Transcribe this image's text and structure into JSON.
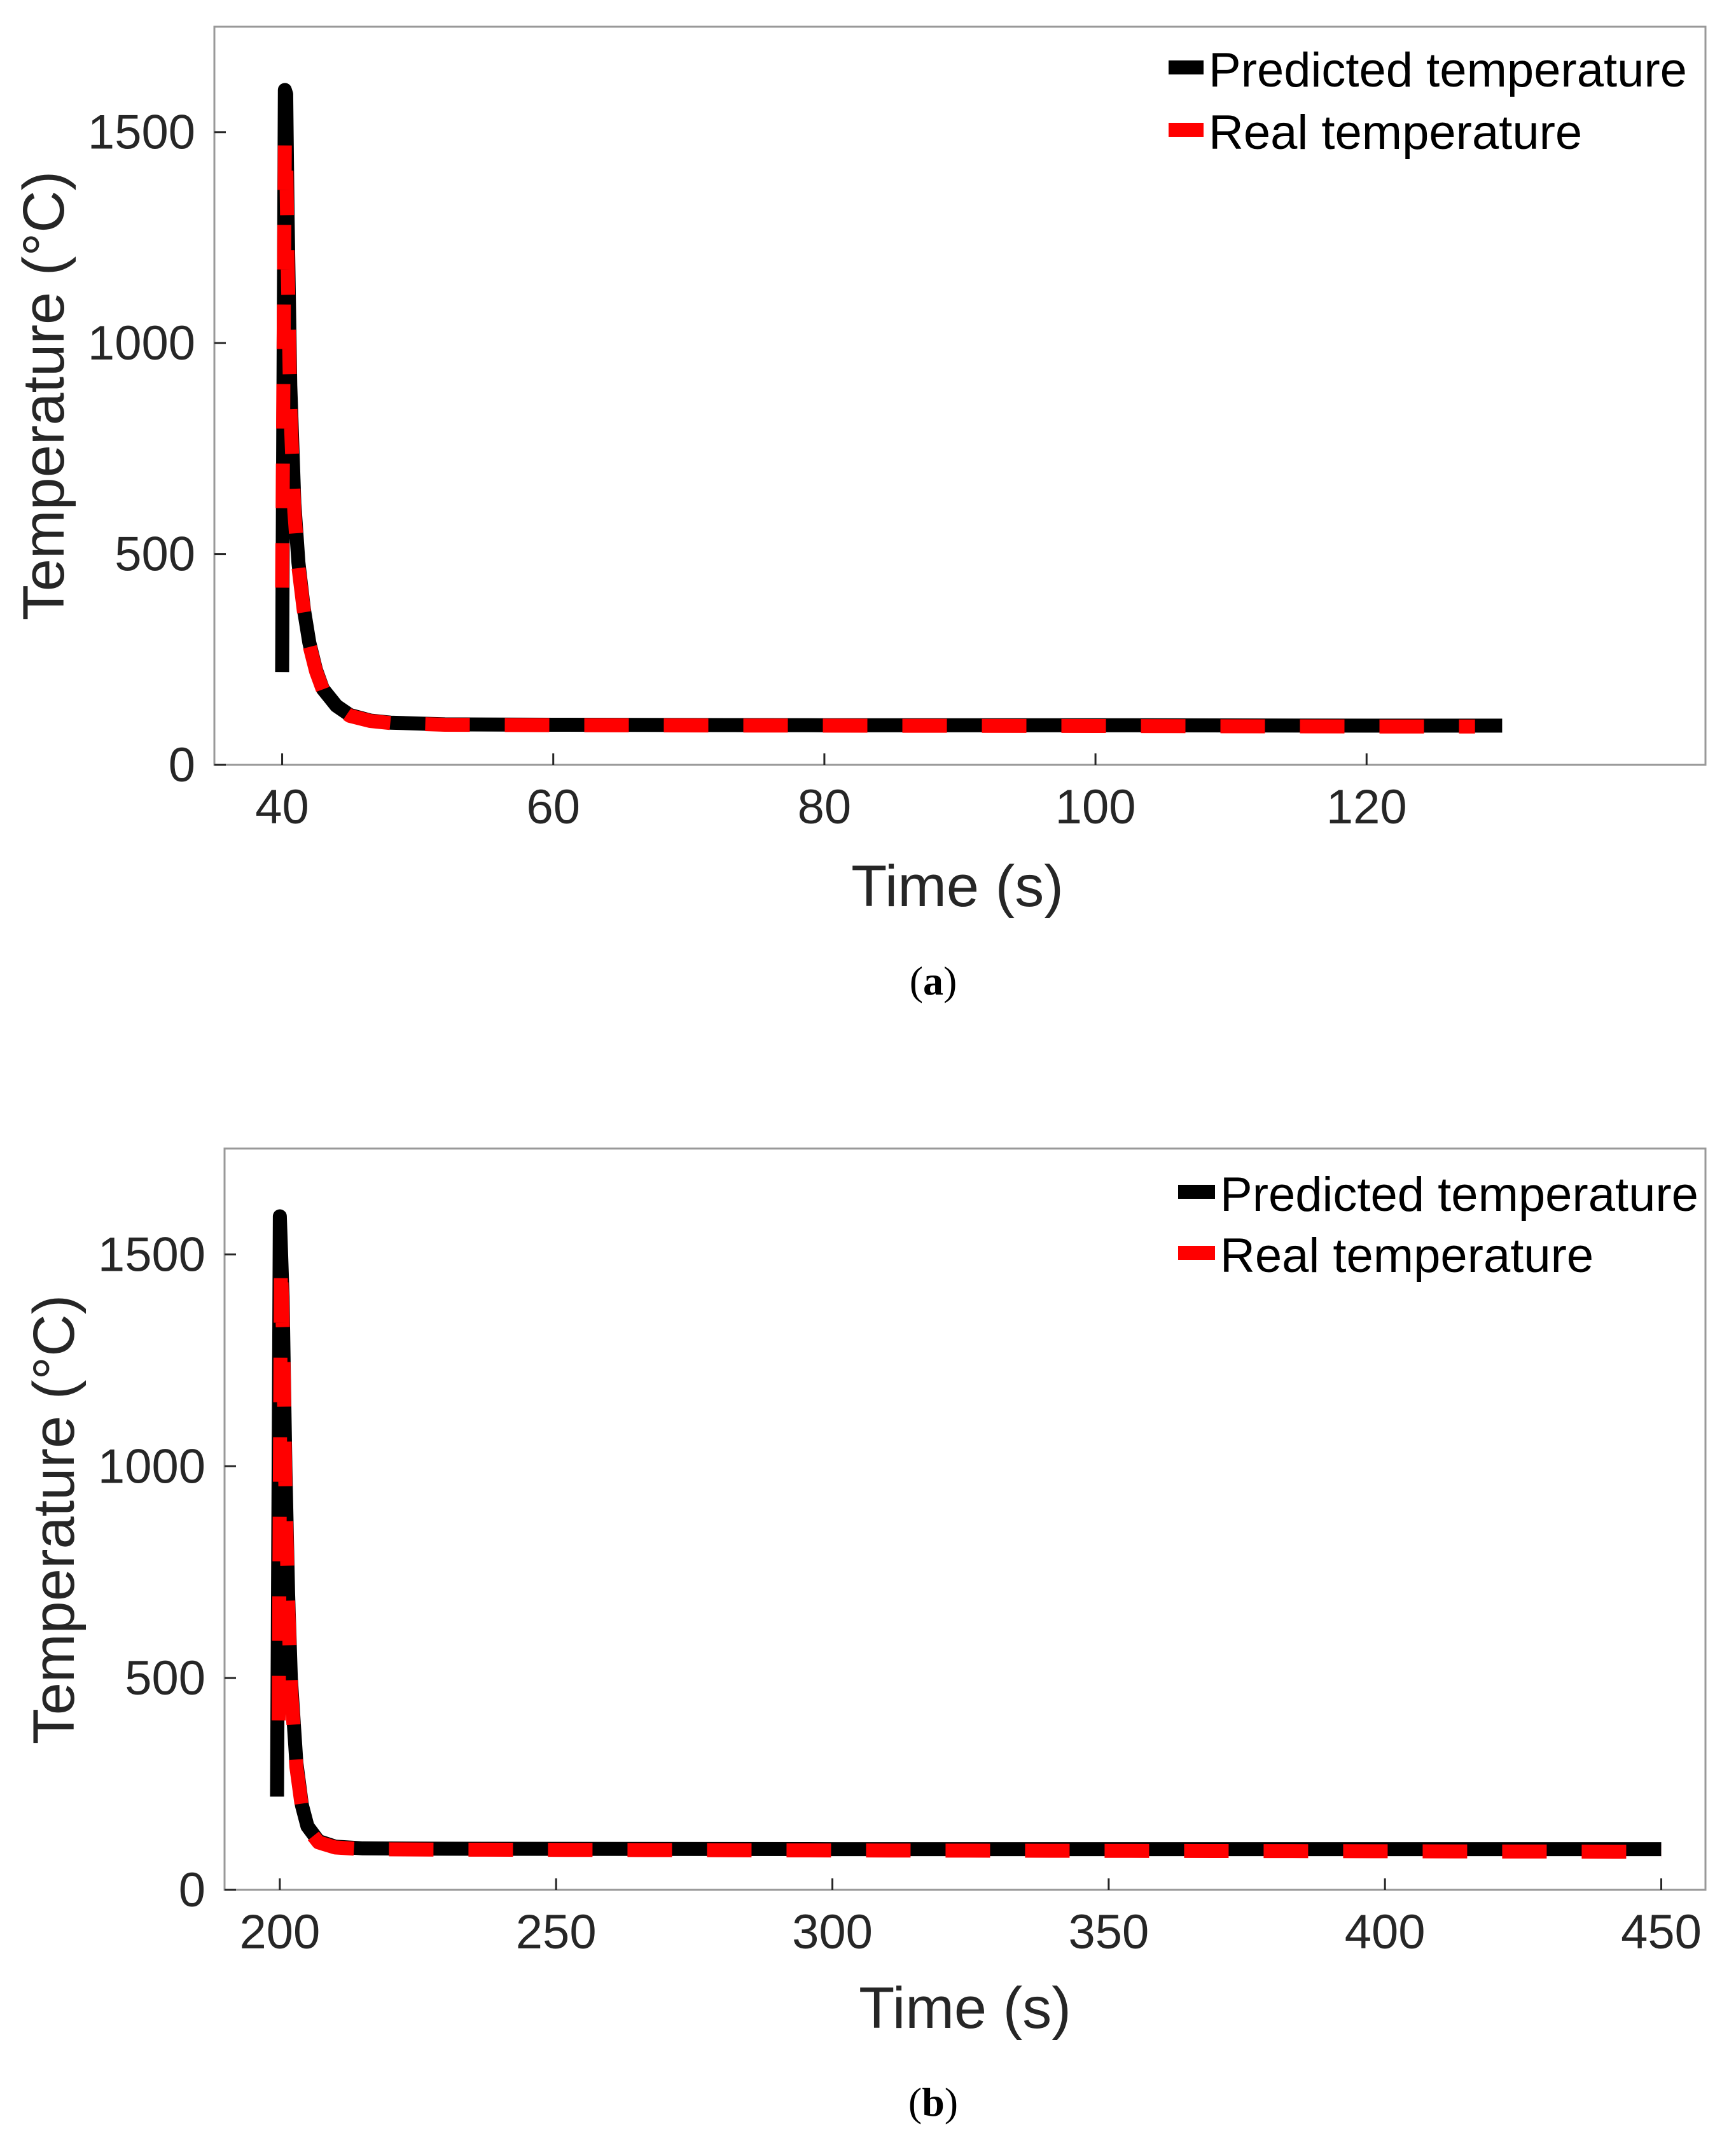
{
  "chart_data": [
    {
      "id": "a",
      "type": "line",
      "caption_label": "a",
      "xlabel": "Time (s)",
      "ylabel": "Temperature (°C)",
      "xlim": [
        35,
        145
      ],
      "ylim": [
        0,
        1750
      ],
      "xticks": [
        40,
        60,
        80,
        100,
        120
      ],
      "yticks": [
        0,
        500,
        1000,
        1500
      ],
      "legend_position": "top-right",
      "series": [
        {
          "name": "Predicted temperature",
          "color": "#000000",
          "style": "solid",
          "x": [
            40.0,
            40.2,
            40.3,
            40.4,
            40.6,
            40.9,
            41.2,
            41.6,
            42.0,
            42.5,
            43.0,
            44.0,
            45.0,
            46.5,
            48.0,
            52.0,
            60.0,
            80.0,
            100.0,
            120.0,
            130.0
          ],
          "y": [
            220,
            1600,
            1590,
            1300,
            900,
            620,
            480,
            370,
            290,
            225,
            180,
            140,
            118,
            105,
            100,
            96,
            95,
            94,
            94,
            93,
            93
          ]
        },
        {
          "name": "Real temperature",
          "color": "#ff0000",
          "style": "dashed",
          "x": [
            40.0,
            40.2,
            40.3,
            40.4,
            40.6,
            40.9,
            41.2,
            41.6,
            42.0,
            42.5,
            43.0,
            44.0,
            45.0,
            46.5,
            48.0,
            52.0,
            60.0,
            80.0,
            100.0,
            120.0,
            128.0
          ],
          "y": [
            420,
            1480,
            1450,
            1200,
            850,
            600,
            470,
            365,
            285,
            222,
            178,
            138,
            116,
            104,
            99,
            95,
            94,
            93,
            92,
            91,
            91
          ]
        }
      ]
    },
    {
      "id": "b",
      "type": "line",
      "caption_label": "b",
      "xlabel": "Time (s)",
      "ylabel": "Temperature (°C)",
      "xlim": [
        190,
        458
      ],
      "ylim": [
        0,
        1750
      ],
      "xticks": [
        200,
        250,
        300,
        350,
        400,
        450
      ],
      "yticks": [
        0,
        500,
        1000,
        1500
      ],
      "legend_position": "top-right",
      "series": [
        {
          "name": "Predicted temperature",
          "color": "#000000",
          "style": "solid",
          "x": [
            199.5,
            200.0,
            200.5,
            201.0,
            201.5,
            202.0,
            203.0,
            204.0,
            205.0,
            207.0,
            210.0,
            215.0,
            230.0,
            300.0,
            400.0,
            450.0
          ],
          "y": [
            220,
            1590,
            1400,
            1000,
            700,
            500,
            300,
            200,
            150,
            115,
            102,
            98,
            97,
            96,
            96,
            96
          ]
        },
        {
          "name": "Real temperature",
          "color": "#ff0000",
          "style": "dashed",
          "x": [
            199.8,
            200.2,
            200.6,
            201.0,
            201.5,
            202.0,
            203.0,
            204.0,
            205.0,
            207.0,
            210.0,
            215.0,
            230.0,
            300.0,
            400.0,
            450.0
          ],
          "y": [
            400,
            1480,
            1300,
            950,
            680,
            480,
            290,
            195,
            145,
            112,
            100,
            96,
            95,
            93,
            91,
            90
          ]
        }
      ]
    }
  ]
}
